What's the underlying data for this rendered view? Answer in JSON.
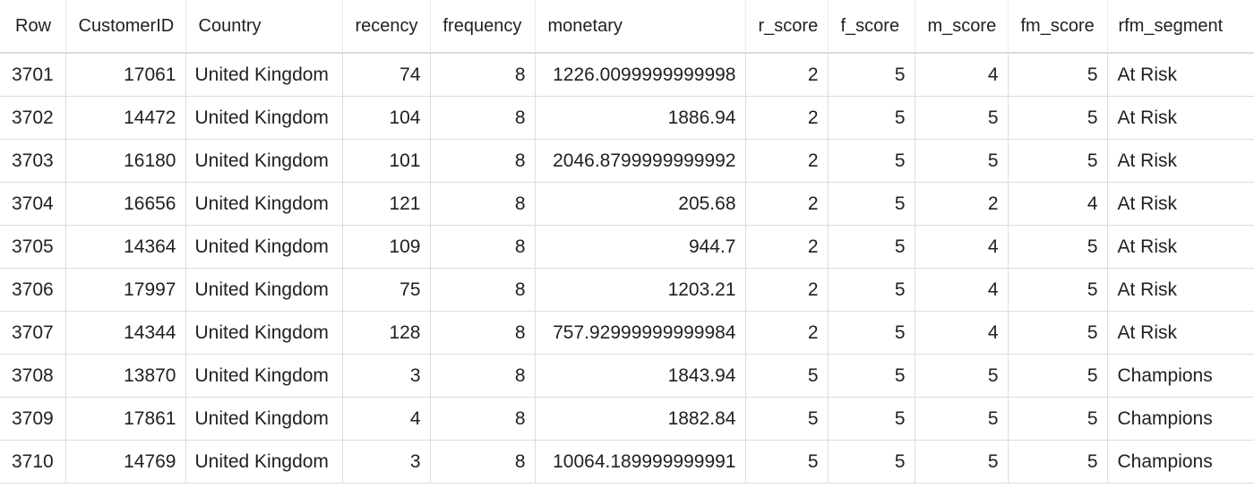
{
  "table": {
    "headers": [
      "Row",
      "CustomerID",
      "Country",
      "recency",
      "frequency",
      "monetary",
      "r_score",
      "f_score",
      "m_score",
      "fm_score",
      "rfm_segment"
    ],
    "rows": [
      [
        "3701",
        "17061",
        "United Kingdom",
        "74",
        "8",
        "1226.0099999999998",
        "2",
        "5",
        "4",
        "5",
        "At Risk"
      ],
      [
        "3702",
        "14472",
        "United Kingdom",
        "104",
        "8",
        "1886.94",
        "2",
        "5",
        "5",
        "5",
        "At Risk"
      ],
      [
        "3703",
        "16180",
        "United Kingdom",
        "101",
        "8",
        "2046.8799999999992",
        "2",
        "5",
        "5",
        "5",
        "At Risk"
      ],
      [
        "3704",
        "16656",
        "United Kingdom",
        "121",
        "8",
        "205.68",
        "2",
        "5",
        "2",
        "4",
        "At Risk"
      ],
      [
        "3705",
        "14364",
        "United Kingdom",
        "109",
        "8",
        "944.7",
        "2",
        "5",
        "4",
        "5",
        "At Risk"
      ],
      [
        "3706",
        "17997",
        "United Kingdom",
        "75",
        "8",
        "1203.21",
        "2",
        "5",
        "4",
        "5",
        "At Risk"
      ],
      [
        "3707",
        "14344",
        "United Kingdom",
        "128",
        "8",
        "757.92999999999984",
        "2",
        "5",
        "4",
        "5",
        "At Risk"
      ],
      [
        "3708",
        "13870",
        "United Kingdom",
        "3",
        "8",
        "1843.94",
        "5",
        "5",
        "5",
        "5",
        "Champions"
      ],
      [
        "3709",
        "17861",
        "United Kingdom",
        "4",
        "8",
        "1882.84",
        "5",
        "5",
        "5",
        "5",
        "Champions"
      ],
      [
        "3710",
        "14769",
        "United Kingdom",
        "3",
        "8",
        "10064.189999999991",
        "5",
        "5",
        "5",
        "5",
        "Champions"
      ]
    ]
  }
}
